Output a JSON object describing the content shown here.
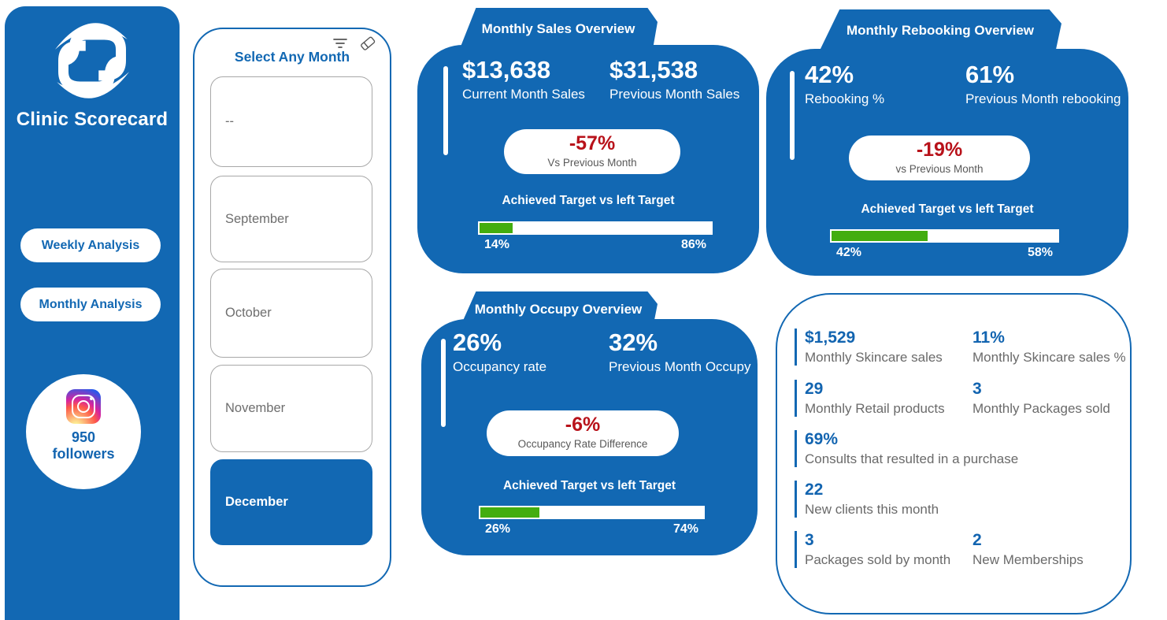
{
  "colors": {
    "primary": "#1268B3",
    "accent_green": "#43AD0F",
    "negative_red": "#B8121A"
  },
  "sidebar": {
    "brand_name": "Clinic Scorecard",
    "nav": [
      {
        "label": "Weekly Analysis"
      },
      {
        "label": "Monthly Analysis"
      }
    ],
    "instagram": {
      "followers_value": "950",
      "followers_label": "followers"
    }
  },
  "month_selector": {
    "title": "Select Any Month",
    "months": [
      {
        "label": "--",
        "selected": false
      },
      {
        "label": "September",
        "selected": false
      },
      {
        "label": "October",
        "selected": false
      },
      {
        "label": "November",
        "selected": false
      },
      {
        "label": "December",
        "selected": true
      }
    ]
  },
  "sales": {
    "title": "Monthly Sales Overview",
    "current_value": "$13,638",
    "current_label": "Current Month Sales",
    "previous_value": "$31,538",
    "previous_label": "Previous Month Sales",
    "delta_value": "-57%",
    "delta_label": "Vs Previous Month",
    "target_title": "Achieved Target vs left Target",
    "achieved_pct": 14,
    "achieved_text": "14%",
    "remaining_text": "86%"
  },
  "rebooking": {
    "title": "Monthly Rebooking Overview",
    "current_value": "42%",
    "current_label": "Rebooking %",
    "previous_value": "61%",
    "previous_label": "Previous Month rebooking",
    "delta_value": "-19%",
    "delta_label": "vs Previous Month",
    "target_title": "Achieved Target vs left Target",
    "achieved_pct": 42,
    "achieved_text": "42%",
    "remaining_text": "58%"
  },
  "occupancy": {
    "title": "Monthly Occupy Overview",
    "current_value": "26%",
    "current_label": "Occupancy rate",
    "previous_value": "32%",
    "previous_label": "Previous Month Occupy",
    "delta_value": "-6%",
    "delta_label": "Occupancy Rate Difference",
    "target_title": "Achieved Target vs left Target",
    "achieved_pct": 26,
    "achieved_text": "26%",
    "remaining_text": "74%"
  },
  "monthly_stats": {
    "items": [
      {
        "value": "$1,529",
        "label": "Monthly Skincare sales"
      },
      {
        "value": "11%",
        "label": "Monthly Skincare sales %"
      },
      {
        "value": "29",
        "label": "Monthly Retail products"
      },
      {
        "value": "3",
        "label": "Monthly Packages sold"
      },
      {
        "value": "69%",
        "label": "Consults that resulted in a purchase"
      },
      {
        "value": "22",
        "label": "New clients this month"
      },
      {
        "value": "3",
        "label": "Packages sold by month"
      },
      {
        "value": "2",
        "label": "New Memberships"
      }
    ]
  }
}
